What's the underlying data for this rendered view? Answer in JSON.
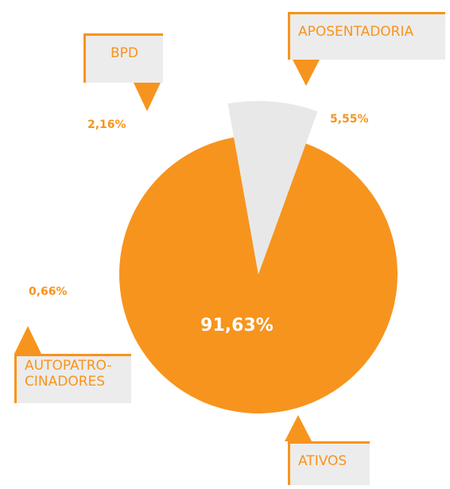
{
  "chart_data": {
    "type": "pie",
    "categories": [
      "APOSENTADORIA",
      "ATIVOS",
      "AUTOPATRO-CINADORES",
      "BPD"
    ],
    "values": [
      5.55,
      91.63,
      0.66,
      2.16
    ],
    "value_labels": [
      "5,55%",
      "91,63%",
      "0,66%",
      "2,16%"
    ],
    "colors": [
      "#e8e8e8",
      "#f7941d",
      "#e8e8e8",
      "#e8e8e8"
    ]
  }
}
